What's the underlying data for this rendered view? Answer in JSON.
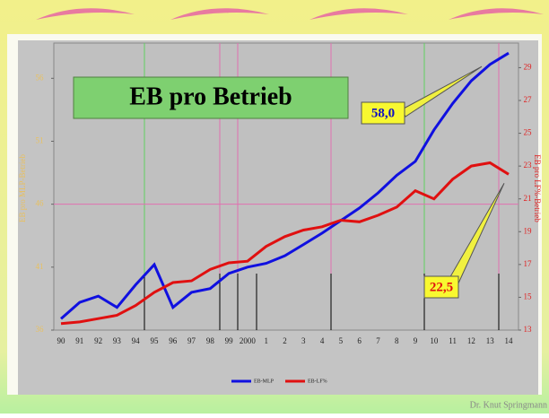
{
  "chart_data": {
    "type": "line",
    "title": "EB pro Betrieb",
    "y_label": "EB pro MLP-Betrieb",
    "y2_label": "EB pro LF%-Betrieb",
    "categories": [
      "90",
      "91",
      "92",
      "93",
      "94",
      "95",
      "96",
      "97",
      "98",
      "99",
      "2000",
      "1",
      "2",
      "3",
      "4",
      "5",
      "6",
      "7",
      "8",
      "9",
      "10",
      "11",
      "12",
      "13",
      "14"
    ],
    "series": [
      {
        "name": "EB-MLP",
        "color": "#1010e0",
        "values": [
          36.9,
          38.2,
          38.7,
          37.8,
          39.6,
          41.2,
          37.8,
          39.0,
          39.3,
          40.5,
          41.0,
          41.3,
          41.9,
          42.8,
          43.7,
          44.7,
          45.7,
          46.9,
          48.3,
          49.4,
          51.9,
          54.0,
          55.8,
          57.1,
          58.0
        ]
      },
      {
        "name": "EB-LF%",
        "color": "#e01010",
        "axis": "y2",
        "values": [
          13.4,
          13.5,
          13.7,
          13.9,
          14.5,
          15.3,
          15.9,
          16.0,
          16.7,
          17.1,
          17.2,
          18.1,
          18.7,
          19.1,
          19.3,
          19.7,
          19.6,
          20.0,
          20.5,
          21.5,
          21.0,
          22.2,
          23.0,
          23.2,
          22.5
        ]
      }
    ],
    "annotations": [
      "58,0",
      "22,5"
    ],
    "ylim": [
      36,
      58.8
    ],
    "yticks": [
      36,
      41,
      46,
      51,
      56
    ],
    "y2lim": [
      13,
      30.5
    ],
    "y2ticks": [
      13,
      15,
      17,
      19,
      21,
      23,
      25,
      27,
      29
    ],
    "footer": "Dr. Knut Springmann"
  }
}
